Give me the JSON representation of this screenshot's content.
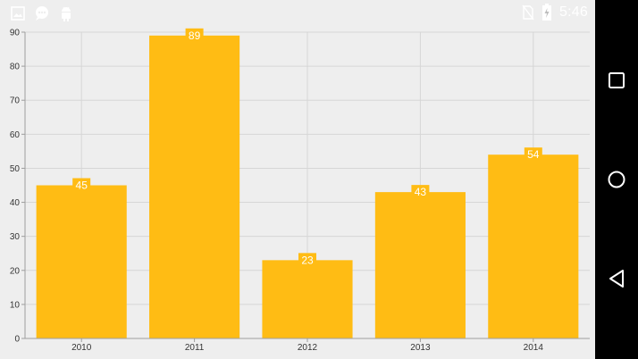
{
  "status_bar": {
    "time": "5:46",
    "left_icons": [
      "image-icon",
      "chat-bubble-icon",
      "android-icon"
    ],
    "right_icons": [
      "no-sim-icon",
      "battery-icon"
    ]
  },
  "nav_bar": {
    "buttons": [
      "recents-square-icon",
      "home-circle-icon",
      "back-triangle-icon"
    ]
  },
  "colors": {
    "bar": "#FFBC14",
    "background": "#EEEEEE",
    "grid": "#D6D6D6",
    "axis": "#9E9E9E",
    "label_fill": "#FFBC14",
    "nav": "#000000"
  },
  "chart_data": {
    "type": "bar",
    "categories": [
      "2010",
      "2011",
      "2012",
      "2013",
      "2014"
    ],
    "values": [
      45,
      89,
      23,
      43,
      54
    ],
    "data_labels": [
      "45",
      "89",
      "23",
      "43",
      "54"
    ],
    "yticks": [
      "0",
      "10",
      "20",
      "30",
      "40",
      "50",
      "60",
      "70",
      "80",
      "90"
    ],
    "ylim": [
      0,
      90
    ],
    "grid": true,
    "title": "",
    "xlabel": "",
    "ylabel": ""
  }
}
